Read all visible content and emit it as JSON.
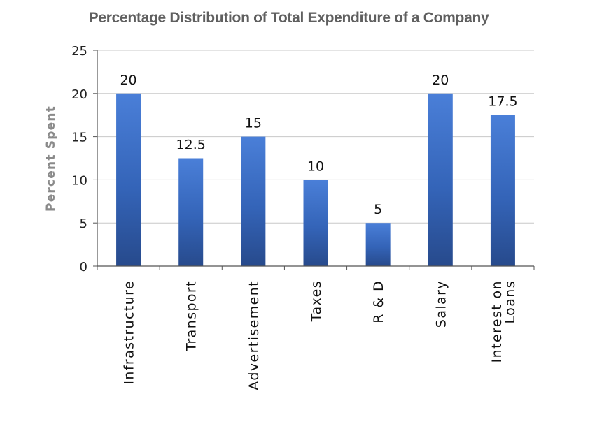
{
  "chart_data": {
    "type": "bar",
    "title": "Percentage Distribution of Total Expenditure of a Company",
    "xlabel": "",
    "ylabel": "Percent Spent",
    "ylim": [
      0,
      25
    ],
    "yticks": [
      0,
      5,
      10,
      15,
      20,
      25
    ],
    "grid": true,
    "legend": "none",
    "bar_color": "#3f6fc6",
    "categories": [
      [
        "Infrastructure"
      ],
      [
        "Transport"
      ],
      [
        "Advertisement"
      ],
      [
        "Taxes"
      ],
      [
        "R & D"
      ],
      [
        "Salary"
      ],
      [
        "Interest on",
        "Loans"
      ]
    ],
    "values": [
      20,
      12.5,
      15,
      10,
      5,
      20,
      17.5
    ],
    "value_labels": [
      "20",
      "12.5",
      "15",
      "10",
      "5",
      "20",
      "17.5"
    ]
  }
}
